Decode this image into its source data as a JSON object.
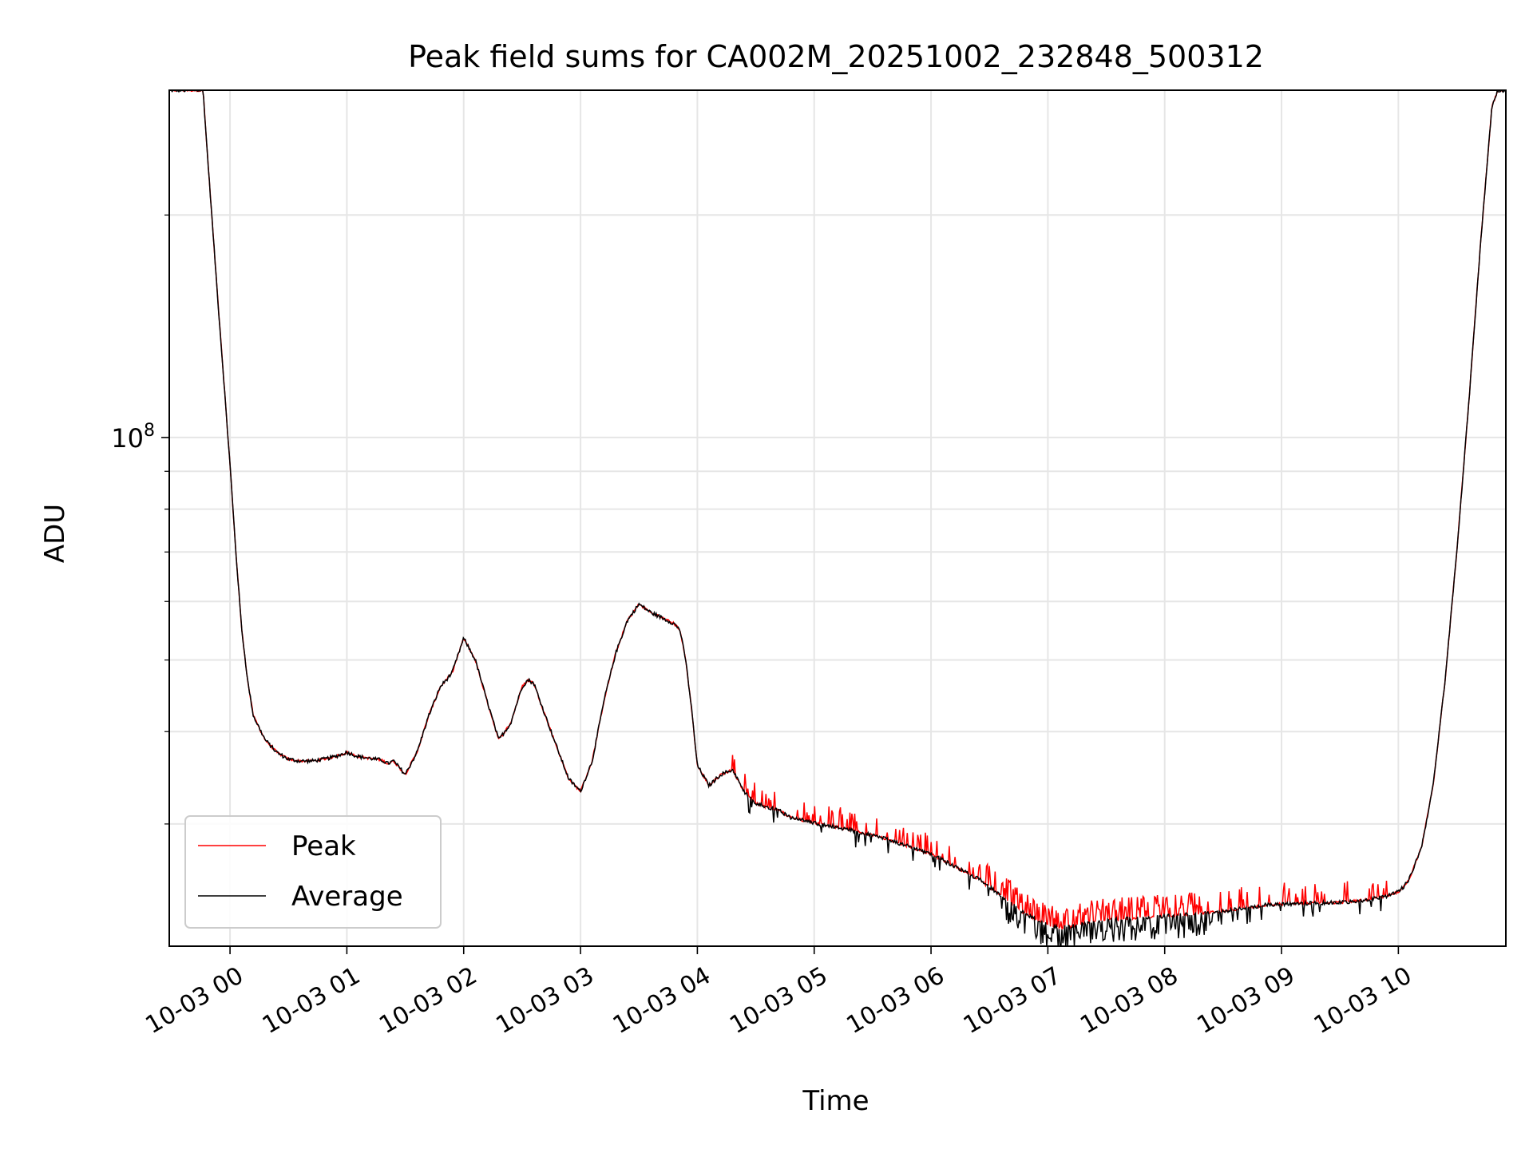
{
  "chart_data": {
    "type": "line",
    "title": "Peak field sums for CA002M_20251002_232848_500312",
    "xlabel": "Time",
    "ylabel": "ADU",
    "yscale": "log",
    "ylim": [
      20500000,
      295000000
    ],
    "xlim": [
      -0.52,
      10.92
    ],
    "x_unit": "hours since 2025-10-03 00:00",
    "grid": true,
    "legend_position": "lower-left",
    "y_major_tick": {
      "value": 100000000,
      "label_base": "10",
      "label_exp": "8"
    },
    "y_minor_ticks": [
      30000000,
      40000000,
      50000000,
      60000000,
      70000000,
      80000000,
      90000000,
      200000000
    ],
    "x_ticks": [
      {
        "value": 0,
        "label": "10-03 00"
      },
      {
        "value": 1,
        "label": "10-03 01"
      },
      {
        "value": 2,
        "label": "10-03 02"
      },
      {
        "value": 3,
        "label": "10-03 03"
      },
      {
        "value": 4,
        "label": "10-03 04"
      },
      {
        "value": 5,
        "label": "10-03 05"
      },
      {
        "value": 6,
        "label": "10-03 06"
      },
      {
        "value": 7,
        "label": "10-03 07"
      },
      {
        "value": 8,
        "label": "10-03 08"
      },
      {
        "value": 9,
        "label": "10-03 09"
      },
      {
        "value": 10,
        "label": "10-03 10"
      }
    ],
    "series": [
      {
        "name": "Peak",
        "color": "#ff0000"
      },
      {
        "name": "Average",
        "color": "#000000"
      }
    ],
    "average_profile": {
      "x": [
        -0.52,
        -0.23,
        -0.2,
        -0.1,
        0.0,
        0.05,
        0.1,
        0.15,
        0.2,
        0.3,
        0.4,
        0.5,
        0.6,
        0.7,
        0.8,
        0.9,
        1.0,
        1.1,
        1.2,
        1.3,
        1.35,
        1.4,
        1.5,
        1.6,
        1.7,
        1.8,
        1.9,
        2.0,
        2.1,
        2.2,
        2.3,
        2.4,
        2.5,
        2.55,
        2.6,
        2.7,
        2.8,
        2.9,
        3.0,
        3.1,
        3.2,
        3.3,
        3.4,
        3.5,
        3.6,
        3.7,
        3.8,
        3.85,
        3.9,
        3.95,
        4.0,
        4.1,
        4.2,
        4.3,
        4.4,
        4.5,
        4.6,
        4.7,
        4.8,
        5.0,
        5.2,
        5.4,
        5.6,
        5.8,
        6.0,
        6.2,
        6.4,
        6.6,
        6.8,
        7.0,
        7.1,
        7.2,
        7.3,
        7.5,
        7.7,
        7.9,
        8.1,
        8.3,
        8.5,
        8.7,
        8.9,
        9.1,
        9.3,
        9.5,
        9.7,
        9.9,
        10.0,
        10.05,
        10.1,
        10.2,
        10.3,
        10.4,
        10.5,
        10.6,
        10.7,
        10.8,
        10.85,
        10.92
      ],
      "y": [
        295000000,
        295000000,
        250000000,
        150000000,
        92000000,
        70000000,
        55000000,
        47000000,
        42000000,
        39000000,
        37500000,
        36700000,
        36500000,
        36500000,
        36700000,
        37000000,
        37500000,
        37000000,
        36800000,
        36600000,
        36200000,
        36500000,
        35000000,
        37500000,
        42000000,
        46000000,
        48000000,
        53500000,
        50000000,
        44000000,
        39000000,
        41000000,
        46000000,
        47000000,
        46500000,
        42000000,
        38000000,
        34500000,
        33200000,
        36500000,
        44000000,
        51000000,
        56500000,
        59500000,
        58000000,
        57000000,
        56000000,
        55000000,
        50000000,
        43000000,
        36000000,
        33800000,
        35000000,
        35500000,
        33200000,
        32000000,
        31600000,
        31300000,
        30600000,
        30100000,
        29700000,
        29200000,
        28700000,
        28000000,
        27300000,
        26300000,
        25300000,
        24000000,
        22700000,
        21900000,
        21700000,
        21800000,
        22000000,
        22250000,
        22350000,
        22450000,
        22550000,
        22700000,
        22850000,
        23100000,
        23350000,
        23400000,
        23450000,
        23500000,
        23650000,
        23950000,
        24300000,
        24700000,
        25400000,
        28000000,
        34000000,
        47000000,
        70000000,
        110000000,
        180000000,
        280000000,
        295000000,
        295000000
      ]
    }
  }
}
